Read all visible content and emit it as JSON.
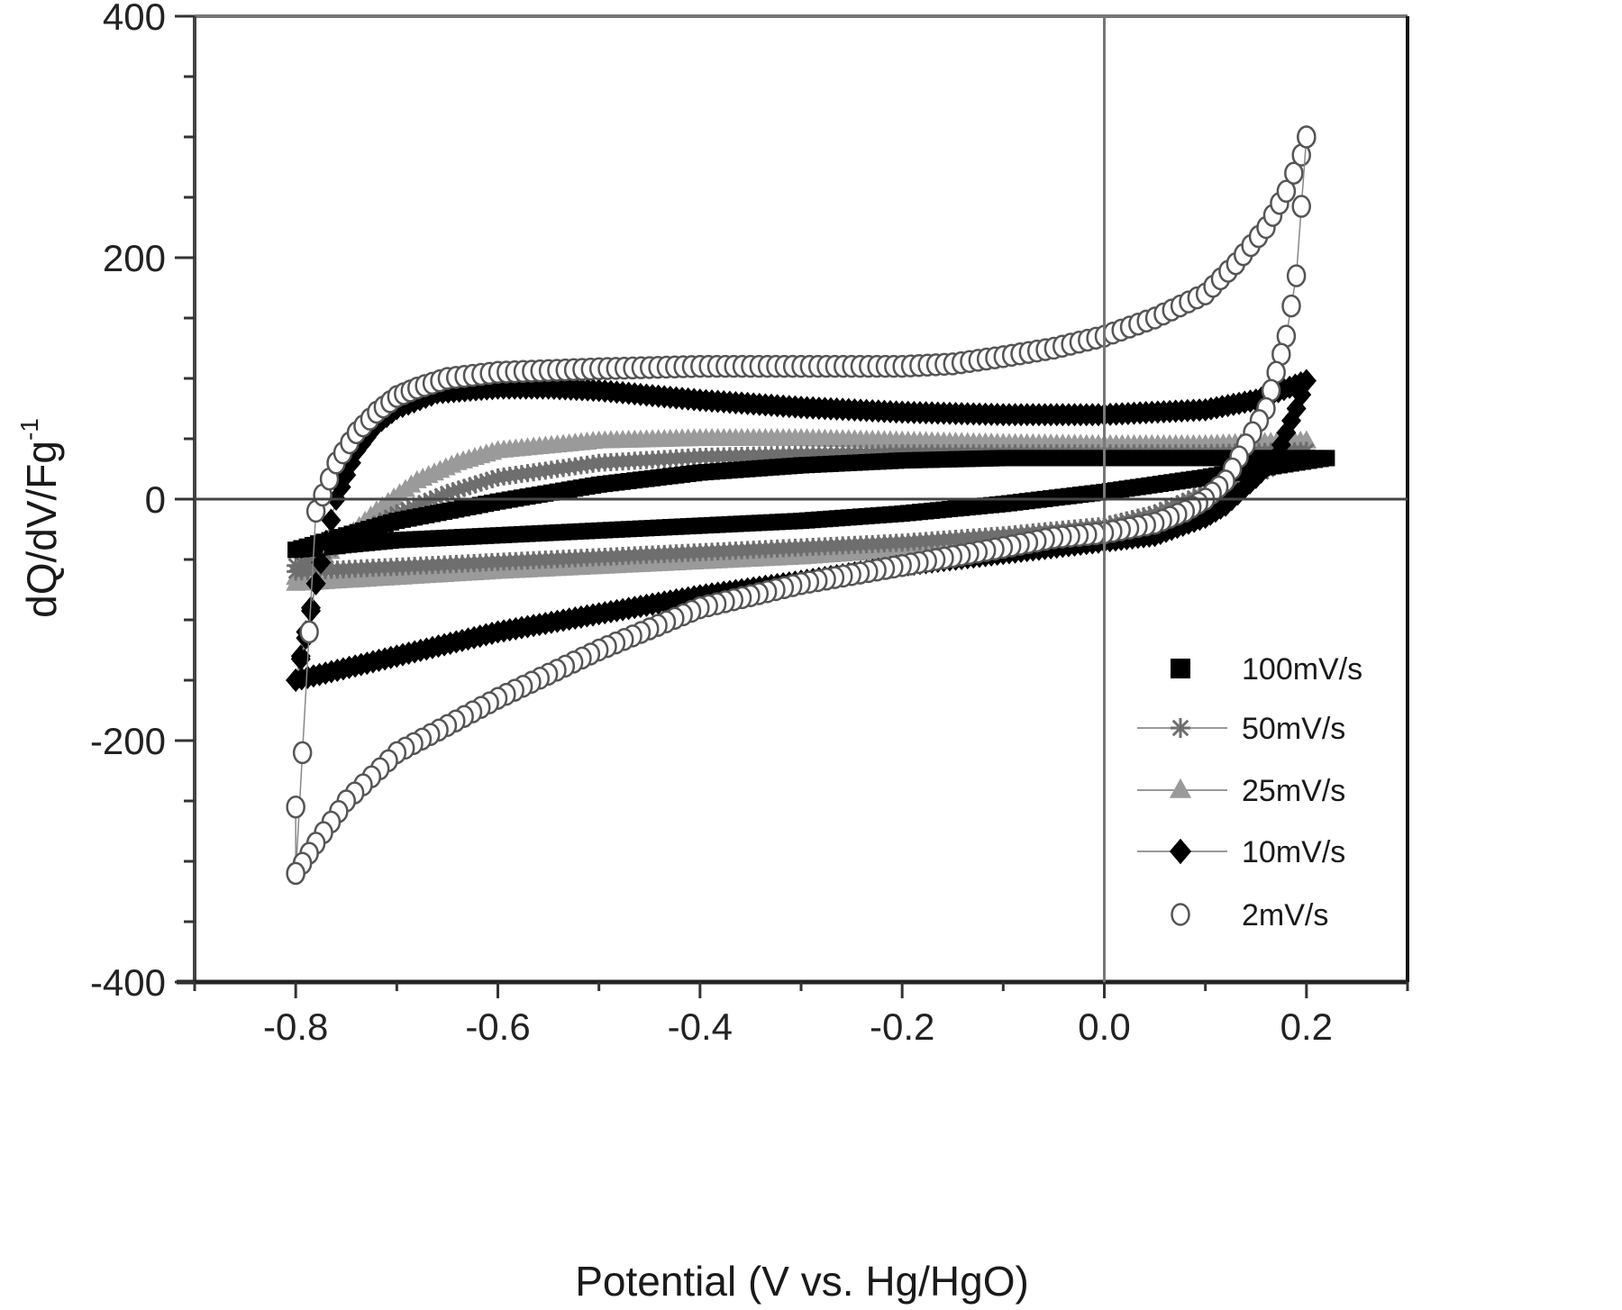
{
  "chart_data": {
    "type": "scatter",
    "title": "",
    "xlabel": "Potential (V vs. Hg/HgO)",
    "ylabel": "dQ/dV/Fg",
    "ylabel_superscript": "-1",
    "xlim": [
      -0.9,
      0.3
    ],
    "ylim": [
      -400,
      400
    ],
    "x_ticks": [
      -0.8,
      -0.6,
      -0.4,
      -0.2,
      0.0,
      0.2
    ],
    "x_tick_labels": [
      "-0.8",
      "-0.6",
      "-0.4",
      "-0.2",
      "0.0",
      "0.2"
    ],
    "y_ticks": [
      -400,
      -200,
      0,
      200,
      400
    ],
    "y_tick_labels": [
      "-400",
      "-200",
      "0",
      "200",
      "400"
    ],
    "grid": false,
    "reference_lines": {
      "x": 0.0,
      "y": 0
    },
    "legend_position": "lower right",
    "series": [
      {
        "name": "100mV/s",
        "marker": "square-filled",
        "color": "#000000",
        "anodic": {
          "x": [
            -0.8,
            -0.75,
            -0.7,
            -0.6,
            -0.5,
            -0.4,
            -0.3,
            -0.2,
            -0.1,
            0.0,
            0.1,
            0.2,
            0.22
          ],
          "y": [
            -42,
            -30,
            -18,
            -2,
            12,
            22,
            28,
            32,
            34,
            34,
            34,
            34,
            34
          ]
        },
        "cathodic": {
          "x": [
            0.22,
            0.15,
            0.1,
            0.05,
            0.0,
            -0.1,
            -0.2,
            -0.3,
            -0.4,
            -0.5,
            -0.6,
            -0.7,
            -0.8
          ],
          "y": [
            34,
            25,
            18,
            12,
            6,
            -4,
            -12,
            -18,
            -22,
            -26,
            -30,
            -34,
            -42
          ]
        }
      },
      {
        "name": "50mV/s",
        "marker": "star",
        "color": "#6e6e6e",
        "anodic": {
          "x": [
            -0.8,
            -0.75,
            -0.7,
            -0.65,
            -0.6,
            -0.5,
            -0.4,
            -0.3,
            -0.2,
            -0.1,
            0.0,
            0.1,
            0.2
          ],
          "y": [
            -55,
            -35,
            -12,
            5,
            18,
            30,
            35,
            37,
            38,
            38,
            38,
            38,
            40
          ]
        },
        "cathodic": {
          "x": [
            0.2,
            0.15,
            0.1,
            0.05,
            0.0,
            -0.1,
            -0.2,
            -0.3,
            -0.4,
            -0.5,
            -0.6,
            -0.7,
            -0.8
          ],
          "y": [
            40,
            20,
            5,
            -12,
            -22,
            -30,
            -36,
            -40,
            -44,
            -48,
            -52,
            -56,
            -60
          ]
        }
      },
      {
        "name": "25mV/s",
        "marker": "triangle-filled",
        "color": "#9a9a9a",
        "anodic": {
          "x": [
            -0.8,
            -0.76,
            -0.72,
            -0.68,
            -0.64,
            -0.6,
            -0.5,
            -0.4,
            -0.3,
            -0.2,
            -0.1,
            0.0,
            0.1,
            0.2
          ],
          "y": [
            -65,
            -40,
            -10,
            15,
            30,
            40,
            48,
            50,
            50,
            48,
            46,
            45,
            45,
            48
          ]
        },
        "cathodic": {
          "x": [
            0.2,
            0.15,
            0.1,
            0.05,
            0.0,
            -0.1,
            -0.2,
            -0.3,
            -0.4,
            -0.5,
            -0.6,
            -0.7,
            -0.8
          ],
          "y": [
            48,
            25,
            5,
            -15,
            -25,
            -35,
            -42,
            -48,
            -52,
            -56,
            -60,
            -65,
            -70
          ]
        }
      },
      {
        "name": "10mV/s",
        "marker": "diamond-filled",
        "color": "#000000",
        "anodic": {
          "x": [
            -0.8,
            -0.78,
            -0.76,
            -0.74,
            -0.72,
            -0.7,
            -0.66,
            -0.6,
            -0.55,
            -0.5,
            -0.4,
            -0.3,
            -0.2,
            -0.1,
            0.0,
            0.1,
            0.15,
            0.2
          ],
          "y": [
            -150,
            -70,
            0,
            40,
            62,
            75,
            88,
            92,
            92,
            90,
            82,
            76,
            72,
            70,
            70,
            74,
            82,
            98
          ]
        },
        "cathodic": {
          "x": [
            0.2,
            0.19,
            0.18,
            0.17,
            0.15,
            0.12,
            0.1,
            0.05,
            0.0,
            -0.1,
            -0.2,
            -0.3,
            -0.4,
            -0.5,
            -0.6,
            -0.7,
            -0.8,
            -0.79,
            -0.78
          ],
          "y": [
            98,
            75,
            55,
            35,
            18,
            -5,
            -15,
            -30,
            -35,
            -45,
            -55,
            -68,
            -80,
            -95,
            -110,
            -130,
            -150,
            -115,
            -70
          ]
        }
      },
      {
        "name": "2mV/s",
        "marker": "circle-open",
        "color": "#555555",
        "anodic": {
          "x": [
            -0.8,
            -0.78,
            -0.76,
            -0.74,
            -0.72,
            -0.7,
            -0.68,
            -0.65,
            -0.6,
            -0.5,
            -0.4,
            -0.3,
            -0.2,
            -0.15,
            -0.1,
            -0.05,
            0.0,
            0.05,
            0.1,
            0.13,
            0.16,
            0.18,
            0.195,
            0.2
          ],
          "y": [
            -310,
            -10,
            30,
            55,
            72,
            85,
            92,
            100,
            105,
            108,
            110,
            110,
            110,
            112,
            118,
            125,
            135,
            150,
            170,
            195,
            225,
            255,
            285,
            300
          ]
        },
        "cathodic": {
          "x": [
            0.2,
            0.19,
            0.18,
            0.17,
            0.16,
            0.14,
            0.12,
            0.1,
            0.08,
            0.05,
            0.0,
            -0.05,
            -0.1,
            -0.2,
            -0.3,
            -0.4,
            -0.5,
            -0.6,
            -0.7,
            -0.75,
            -0.78,
            -0.8,
            -0.8
          ],
          "y": [
            300,
            185,
            135,
            105,
            75,
            45,
            15,
            0,
            -10,
            -20,
            -28,
            -32,
            -40,
            -55,
            -70,
            -90,
            -125,
            -165,
            -210,
            -250,
            -285,
            -310,
            -255
          ]
        }
      }
    ]
  },
  "labels": {
    "xlabel": "Potential (V vs. Hg/HgO)",
    "ylabel": "dQ/dV/Fg",
    "ylabel_sup": "-1"
  }
}
